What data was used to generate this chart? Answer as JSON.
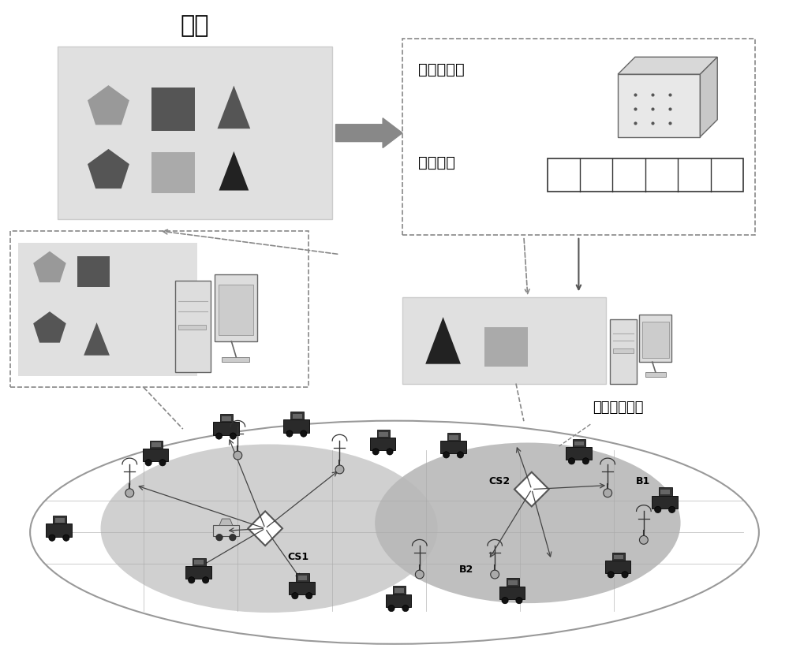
{
  "bg_color": "#ffffff",
  "title_renwu": "任务",
  "title_gaoji": "高级控制器",
  "title_renwupaidui": "任务排队",
  "title_jizhan": "基站服务范围",
  "label_CS1": "CS1",
  "label_CS2": "CS2",
  "label_B1": "B1",
  "label_B2": "B2",
  "shape_colors": {
    "pent_light": "#999999",
    "pent_dark": "#555555",
    "rect_dark": "#555555",
    "rect_light": "#aaaaaa",
    "tri_dark": "#555555",
    "tri_black": "#222222"
  },
  "box_renwu_color": "#e0e0e0",
  "box_edge_color": "#cccccc",
  "dashed_box_color": "#888888",
  "arrow_color": "#888888",
  "ellipse_outer": "#cccccc",
  "ellipse_inner1": "#c8c8c8",
  "ellipse_inner2": "#b8b8b8",
  "grid_color": "#aaaaaa"
}
